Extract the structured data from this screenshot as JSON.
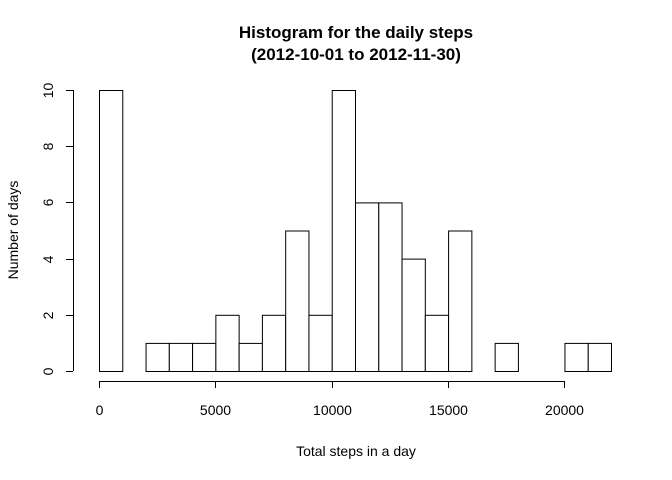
{
  "chart_data": {
    "type": "bar",
    "title_line1": "Histogram for the daily steps",
    "title_line2": "(2012-10-01 to 2012-11-30)",
    "xlabel": "Total steps in a day",
    "ylabel": "Number of days",
    "bin_width": 1000,
    "bin_starts": [
      0,
      1000,
      2000,
      3000,
      4000,
      5000,
      6000,
      7000,
      8000,
      9000,
      10000,
      11000,
      12000,
      13000,
      14000,
      15000,
      16000,
      17000,
      18000,
      19000,
      20000,
      21000
    ],
    "values": [
      10,
      0,
      1,
      1,
      1,
      2,
      1,
      2,
      5,
      2,
      10,
      6,
      6,
      4,
      2,
      5,
      0,
      1,
      0,
      0,
      1,
      1
    ],
    "xlim": [
      0,
      22000
    ],
    "ylim": [
      0,
      10
    ],
    "x_ticks": [
      0,
      5000,
      10000,
      15000,
      20000
    ],
    "y_ticks": [
      0,
      2,
      4,
      6,
      8,
      10
    ],
    "grid": false,
    "bar_fill": "#ffffff",
    "bar_stroke": "#000000"
  }
}
